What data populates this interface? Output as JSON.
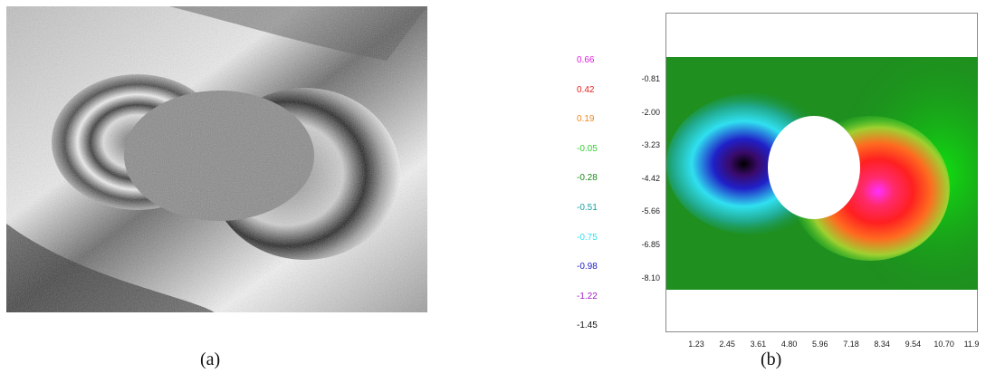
{
  "captions": {
    "a": "(a)",
    "b": "(b)"
  },
  "legend": [
    {
      "label": "0.66",
      "color": "#e020e0"
    },
    {
      "label": "0.42",
      "color": "#e62020"
    },
    {
      "label": "0.19",
      "color": "#f08a20"
    },
    {
      "label": "-0.05",
      "color": "#30d030"
    },
    {
      "label": "-0.28",
      "color": "#1a8a1a"
    },
    {
      "label": "-0.51",
      "color": "#1aa0a0"
    },
    {
      "label": "-0.75",
      "color": "#30e0f0"
    },
    {
      "label": "-0.98",
      "color": "#2020c8"
    },
    {
      "label": "-1.22",
      "color": "#a020c0"
    },
    {
      "label": "-1.45",
      "color": "#111111"
    }
  ],
  "chart_data": {
    "type": "heatmap",
    "y_ticks": [
      "-0.81",
      "-2.00",
      "-3.23",
      "-4.42",
      "-5.66",
      "-6.85",
      "-8.10"
    ],
    "x_ticks": [
      "1.23",
      "2.45",
      "3.61",
      "4.80",
      "5.96",
      "7.18",
      "8.34",
      "9.54",
      "10.70",
      "11.9"
    ],
    "color_scale": {
      "labels": [
        "0.66",
        "0.42",
        "0.19",
        "-0.05",
        "-0.28",
        "-0.51",
        "-0.75",
        "-0.98",
        "-1.22",
        "-1.45"
      ],
      "max": 0.66,
      "min": -1.45
    },
    "grid": false
  }
}
